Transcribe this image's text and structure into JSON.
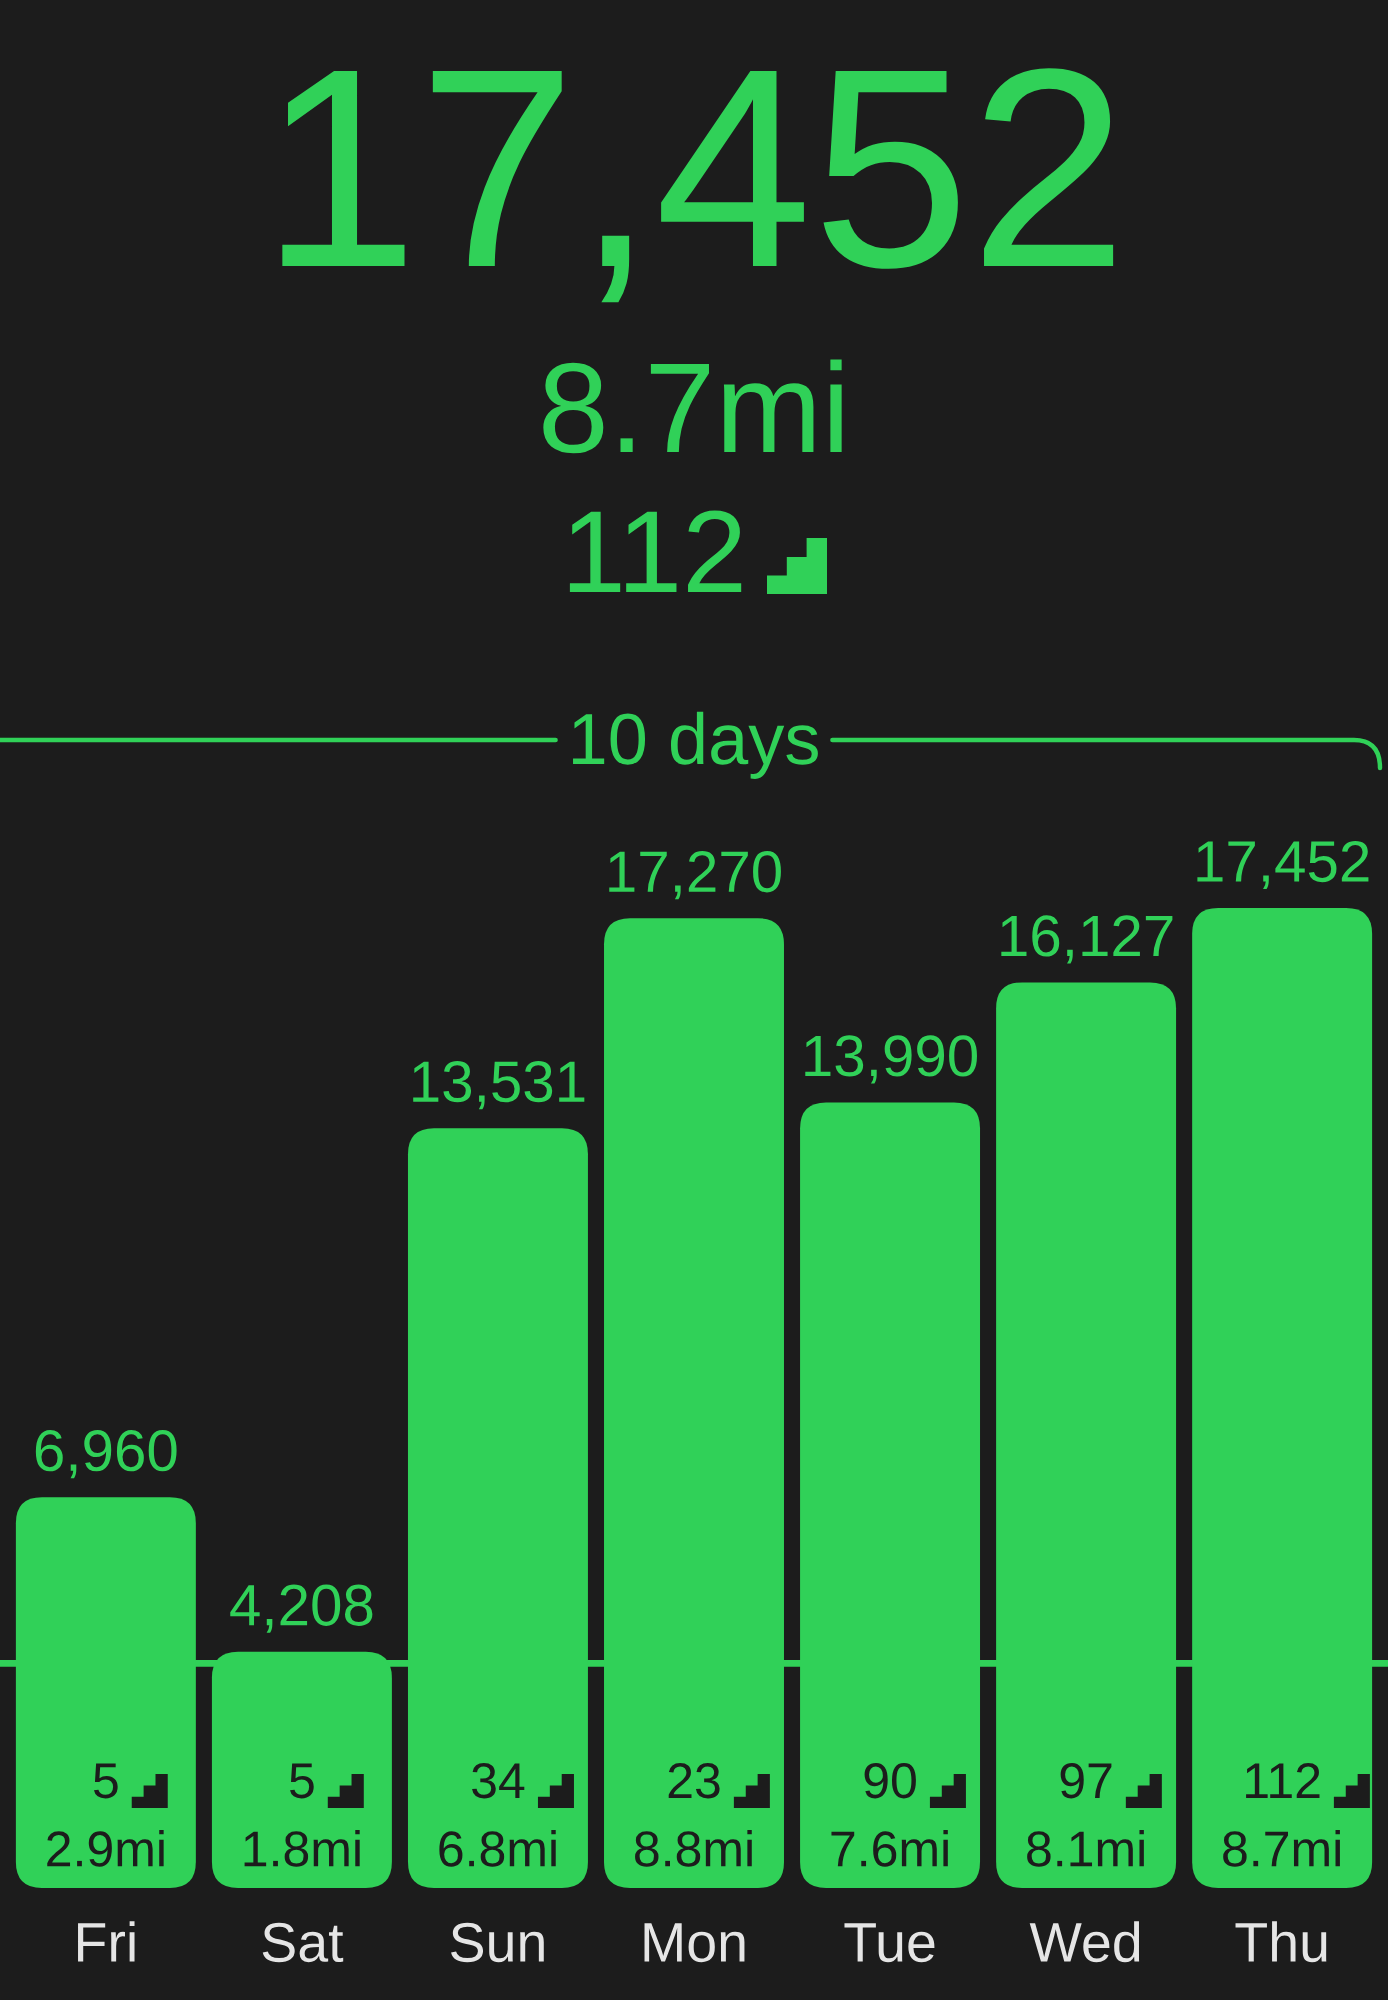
{
  "chart_data": {
    "type": "bar",
    "title": "17,452",
    "subtitle": "8.7mi",
    "categories": [
      "Fri",
      "Sat",
      "Sun",
      "Mon",
      "Tue",
      "Wed",
      "Thu"
    ],
    "values": [
      6960,
      4208,
      13531,
      17270,
      13990,
      16127,
      17452
    ],
    "color": "#30d158",
    "value_labels": [
      "6,960",
      "4,208",
      "13,531",
      "17,270",
      "13,990",
      "16,127",
      "17,452"
    ],
    "ref_lines": [
      {
        "axis": "y",
        "value": 4000,
        "color": "#30d158"
      }
    ],
    "annotations": [
      {
        "text": "5\n2.9mi",
        "x": "Fri",
        "y": 0
      },
      {
        "text": "5\n1.8mi",
        "x": "Sat",
        "y": 0
      },
      {
        "text": "34\n6.8mi",
        "x": "Sun",
        "y": 0
      },
      {
        "text": "23\n8.8mi",
        "x": "Mon",
        "y": 0
      },
      {
        "text": "90\n7.6mi",
        "x": "Tue",
        "y": 0
      },
      {
        "text": "97\n8.1mi",
        "x": "Wed",
        "y": 0
      },
      {
        "text": "112\n8.7mi",
        "x": "Thu",
        "y": 0
      },
      "112",
      "10 days"
    ],
    "tick_labels": "x"
  }
}
